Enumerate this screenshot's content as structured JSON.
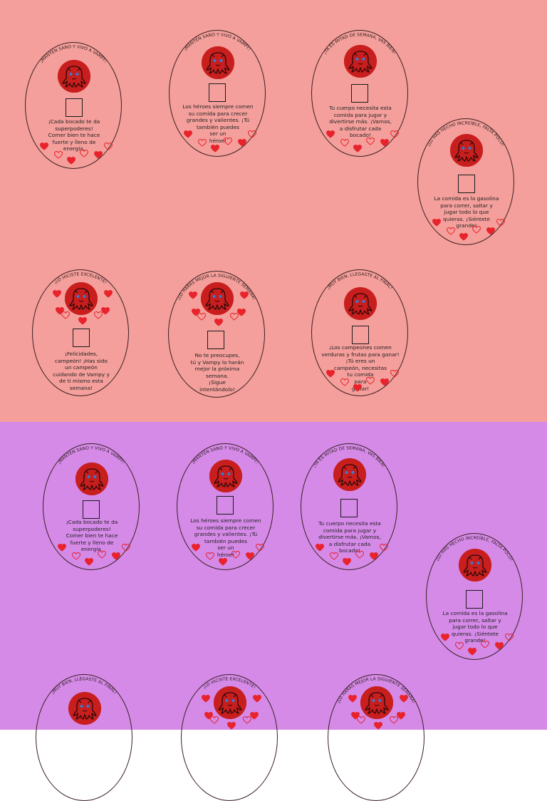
{
  "colors": {
    "top_background": "#f49f9b",
    "bottom_background": "#d58ae8",
    "avatar_red": "#c81e1e",
    "heart_red": "#e8232c",
    "eye_blue": "#2f7fd8"
  },
  "icons": {
    "avatar": "vampy-octopus-icon",
    "checkbox": "checkbox-icon",
    "heart_filled": "heart-filled-icon",
    "heart_outline": "heart-outline-icon"
  },
  "cards": {
    "c1": {
      "title": "¡MANTÉN SANO Y VIVO A VAMPY!",
      "message": "¡Cada bocado te da\nsuperpoderes!\nComer bien te hace\nfuerte y lleno de\nenergía."
    },
    "c2": {
      "title": "¡MANTÉN SANO Y VIVO A VAMPY!",
      "message": "Los héroes siempre comen\nsu comida para crecer\ngrandes y valientes. ¡Tú\ntambién puedes\nser un\nhéroe!"
    },
    "c3": {
      "title": "¡YA ES MITAD DE SEMANA, VAS BIEN!",
      "message": "Tu cuerpo necesita esta\ncomida para jugar y\ndivertirse más. ¡Vamos,\na disfrutar cada\nbocado!"
    },
    "c4": {
      "title": "¡LO HAS HECHO INCREÍBLE, FALTA POCO!",
      "message": "La comida es la gasolina\npara correr, saltar y\njugar todo lo que\nquieras. ¡Siéntete\ngrande!"
    },
    "c5": {
      "title": "¡LO HICISTE EXCELENTE!",
      "message": "¡Felicidades,\ncampeón! ¡Has sido\nun campeón\ncuidando de Vampy y\nde ti mismo esta\nsemana!"
    },
    "c6": {
      "title": "¡LO HARÁS MEJOR LA SIGUIENTE SEMANA!",
      "message": "No te preocupes,\ntú y Vampy lo harán\nmejor la próxima\nsemana.\n¡Sigue\nintentándolo!"
    },
    "c7": {
      "title": "¡MUY BIEN, LLEGASTE AL FINAL!",
      "message": "¡Los campeones comen\nverduras y frutas para ganar!\n¡Tú eres un\ncampeón, necesitas\ntu comida\npara\nganar!"
    },
    "c8": {
      "title": "¡MANTÉN SANO Y VIVO A VAMPY!",
      "message": "¡Cada bocado te da\nsuperpoderes!\nComer bien te hace\nfuerte y lleno de\nenergía."
    },
    "c9": {
      "title": "¡MANTÉN SANO Y VIVO A VAMPY!",
      "message": "Los héroes siempre comen\nsu comida para crecer\ngrandes y valientes. ¡Tú\ntambién puedes\nser un\nhéroe!"
    },
    "c10": {
      "title": "¡YA ES MITAD DE SEMANA, VAS BIEN!",
      "message": "Tu cuerpo necesita esta\ncomida para jugar y\ndivertirse más. ¡Vamos,\na disfrutar cada\nbocado!"
    },
    "c11": {
      "title": "¡LO HAS HECHO INCREÍBLE, FALTA POCO!",
      "message": "La comida es la gasolina\npara correr, saltar y\njugar todo lo que\nquieras. ¡Siéntete\ngrande!"
    },
    "c12": {
      "title": "¡MUY BIEN, LLEGASTE AL FINAL!",
      "message": ""
    },
    "c13": {
      "title": "¡LO HICISTE EXCELENTE!",
      "message": ""
    },
    "c14": {
      "title": "¡LO HARÁS MEJOR LA SIGUIENTE SEMANA!",
      "message": ""
    }
  }
}
